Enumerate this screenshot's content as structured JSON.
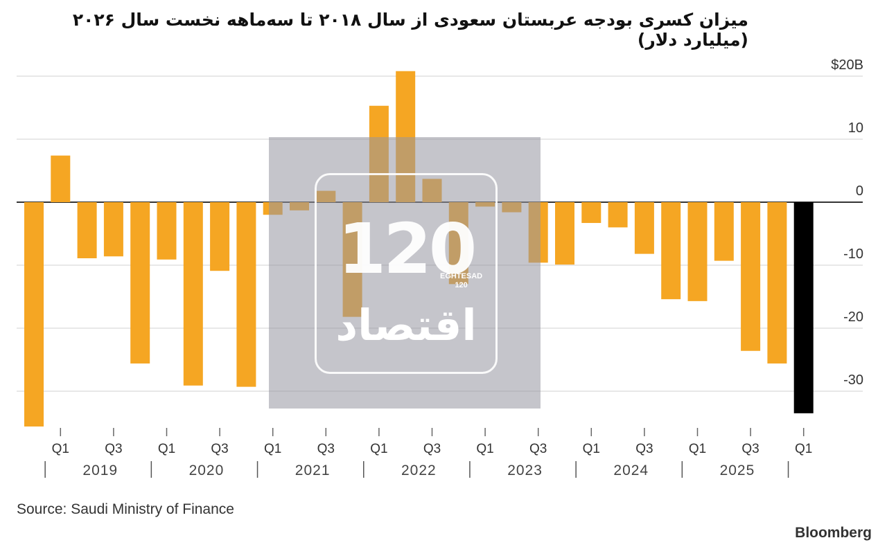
{
  "title": "میزان کسری بودجه عربستان سعودی از سال ۲۰۱۸ تا سه‌ماهه نخست سال ۲۰۲۶ (میلیارد دلار)",
  "source": "Source: Saudi Ministry of Finance",
  "brand": "Bloomberg",
  "watermark": {
    "number": "120",
    "sub1": "EGHTESAD",
    "sub2": "120",
    "word": "اقتصاد"
  },
  "colors": {
    "bar": "#f5a623",
    "highlight": "#000000",
    "grid": "#d9d9d9",
    "zero": "#333333"
  },
  "chart_data": {
    "type": "bar",
    "y_tick_labels": [
      "$20B",
      "10",
      "0",
      "-10",
      "-20",
      "-30"
    ],
    "y_tick_values": [
      20,
      10,
      0,
      -10,
      -20,
      -30
    ],
    "ylim": [
      -36,
      22
    ],
    "grid": true,
    "quarters": [
      "Q4",
      "Q1",
      "Q2",
      "Q3",
      "Q4",
      "Q1",
      "Q2",
      "Q3",
      "Q4",
      "Q1",
      "Q2",
      "Q3",
      "Q4",
      "Q1",
      "Q2",
      "Q3",
      "Q4",
      "Q1",
      "Q2",
      "Q3",
      "Q4",
      "Q1",
      "Q2",
      "Q3",
      "Q4",
      "Q1",
      "Q2",
      "Q3",
      "Q4",
      "Q1"
    ],
    "years": [
      "2018",
      "2019",
      "2019",
      "2019",
      "2019",
      "2020",
      "2020",
      "2020",
      "2020",
      "2021",
      "2021",
      "2021",
      "2021",
      "2022",
      "2022",
      "2022",
      "2022",
      "2023",
      "2023",
      "2023",
      "2023",
      "2024",
      "2024",
      "2024",
      "2024",
      "2025",
      "2025",
      "2025",
      "2025",
      "2026"
    ],
    "values": [
      -35.6,
      7.4,
      -8.9,
      -8.6,
      -25.6,
      -9.1,
      -29.1,
      -10.9,
      -29.3,
      -2.0,
      -1.3,
      1.8,
      -18.2,
      15.3,
      20.8,
      3.7,
      -13.0,
      -0.7,
      -1.6,
      -9.6,
      -9.9,
      -3.3,
      -4.0,
      -8.2,
      -15.4,
      -15.7,
      -9.3,
      -23.6,
      -25.6,
      -33.5
    ],
    "highlight_index": 29,
    "x_tick_labels": [
      "Q1",
      "Q3",
      "Q1",
      "Q3",
      "Q1",
      "Q3",
      "Q1",
      "Q3",
      "Q1",
      "Q3",
      "Q1",
      "Q3",
      "Q1",
      "Q3",
      "Q1"
    ],
    "x_tick_bar_index": [
      1,
      3,
      5,
      7,
      9,
      11,
      13,
      15,
      17,
      19,
      21,
      23,
      25,
      27,
      29
    ],
    "year_labels": [
      "2019",
      "2020",
      "2021",
      "2022",
      "2023",
      "2024",
      "2025"
    ],
    "year_start_index": [
      1,
      5,
      9,
      13,
      17,
      21,
      25
    ]
  }
}
